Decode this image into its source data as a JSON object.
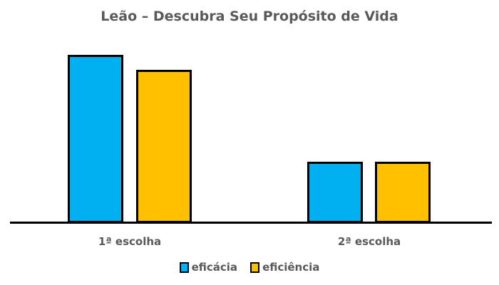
{
  "chart_data": {
    "type": "bar",
    "title": "Leão – Descubra Seu Propósito de Vida",
    "categories": [
      "1ª escolha",
      "2ª escolha"
    ],
    "series": [
      {
        "name": "eficácia",
        "color": "#00B0F0",
        "values": [
          11,
          4
        ]
      },
      {
        "name": "eficiência",
        "color": "#FFC000",
        "values": [
          10,
          4
        ]
      }
    ],
    "xlabel": "",
    "ylabel": "",
    "ylim": [
      0,
      11
    ],
    "grid": false,
    "y_axis_visible": false,
    "legend_position": "bottom"
  }
}
